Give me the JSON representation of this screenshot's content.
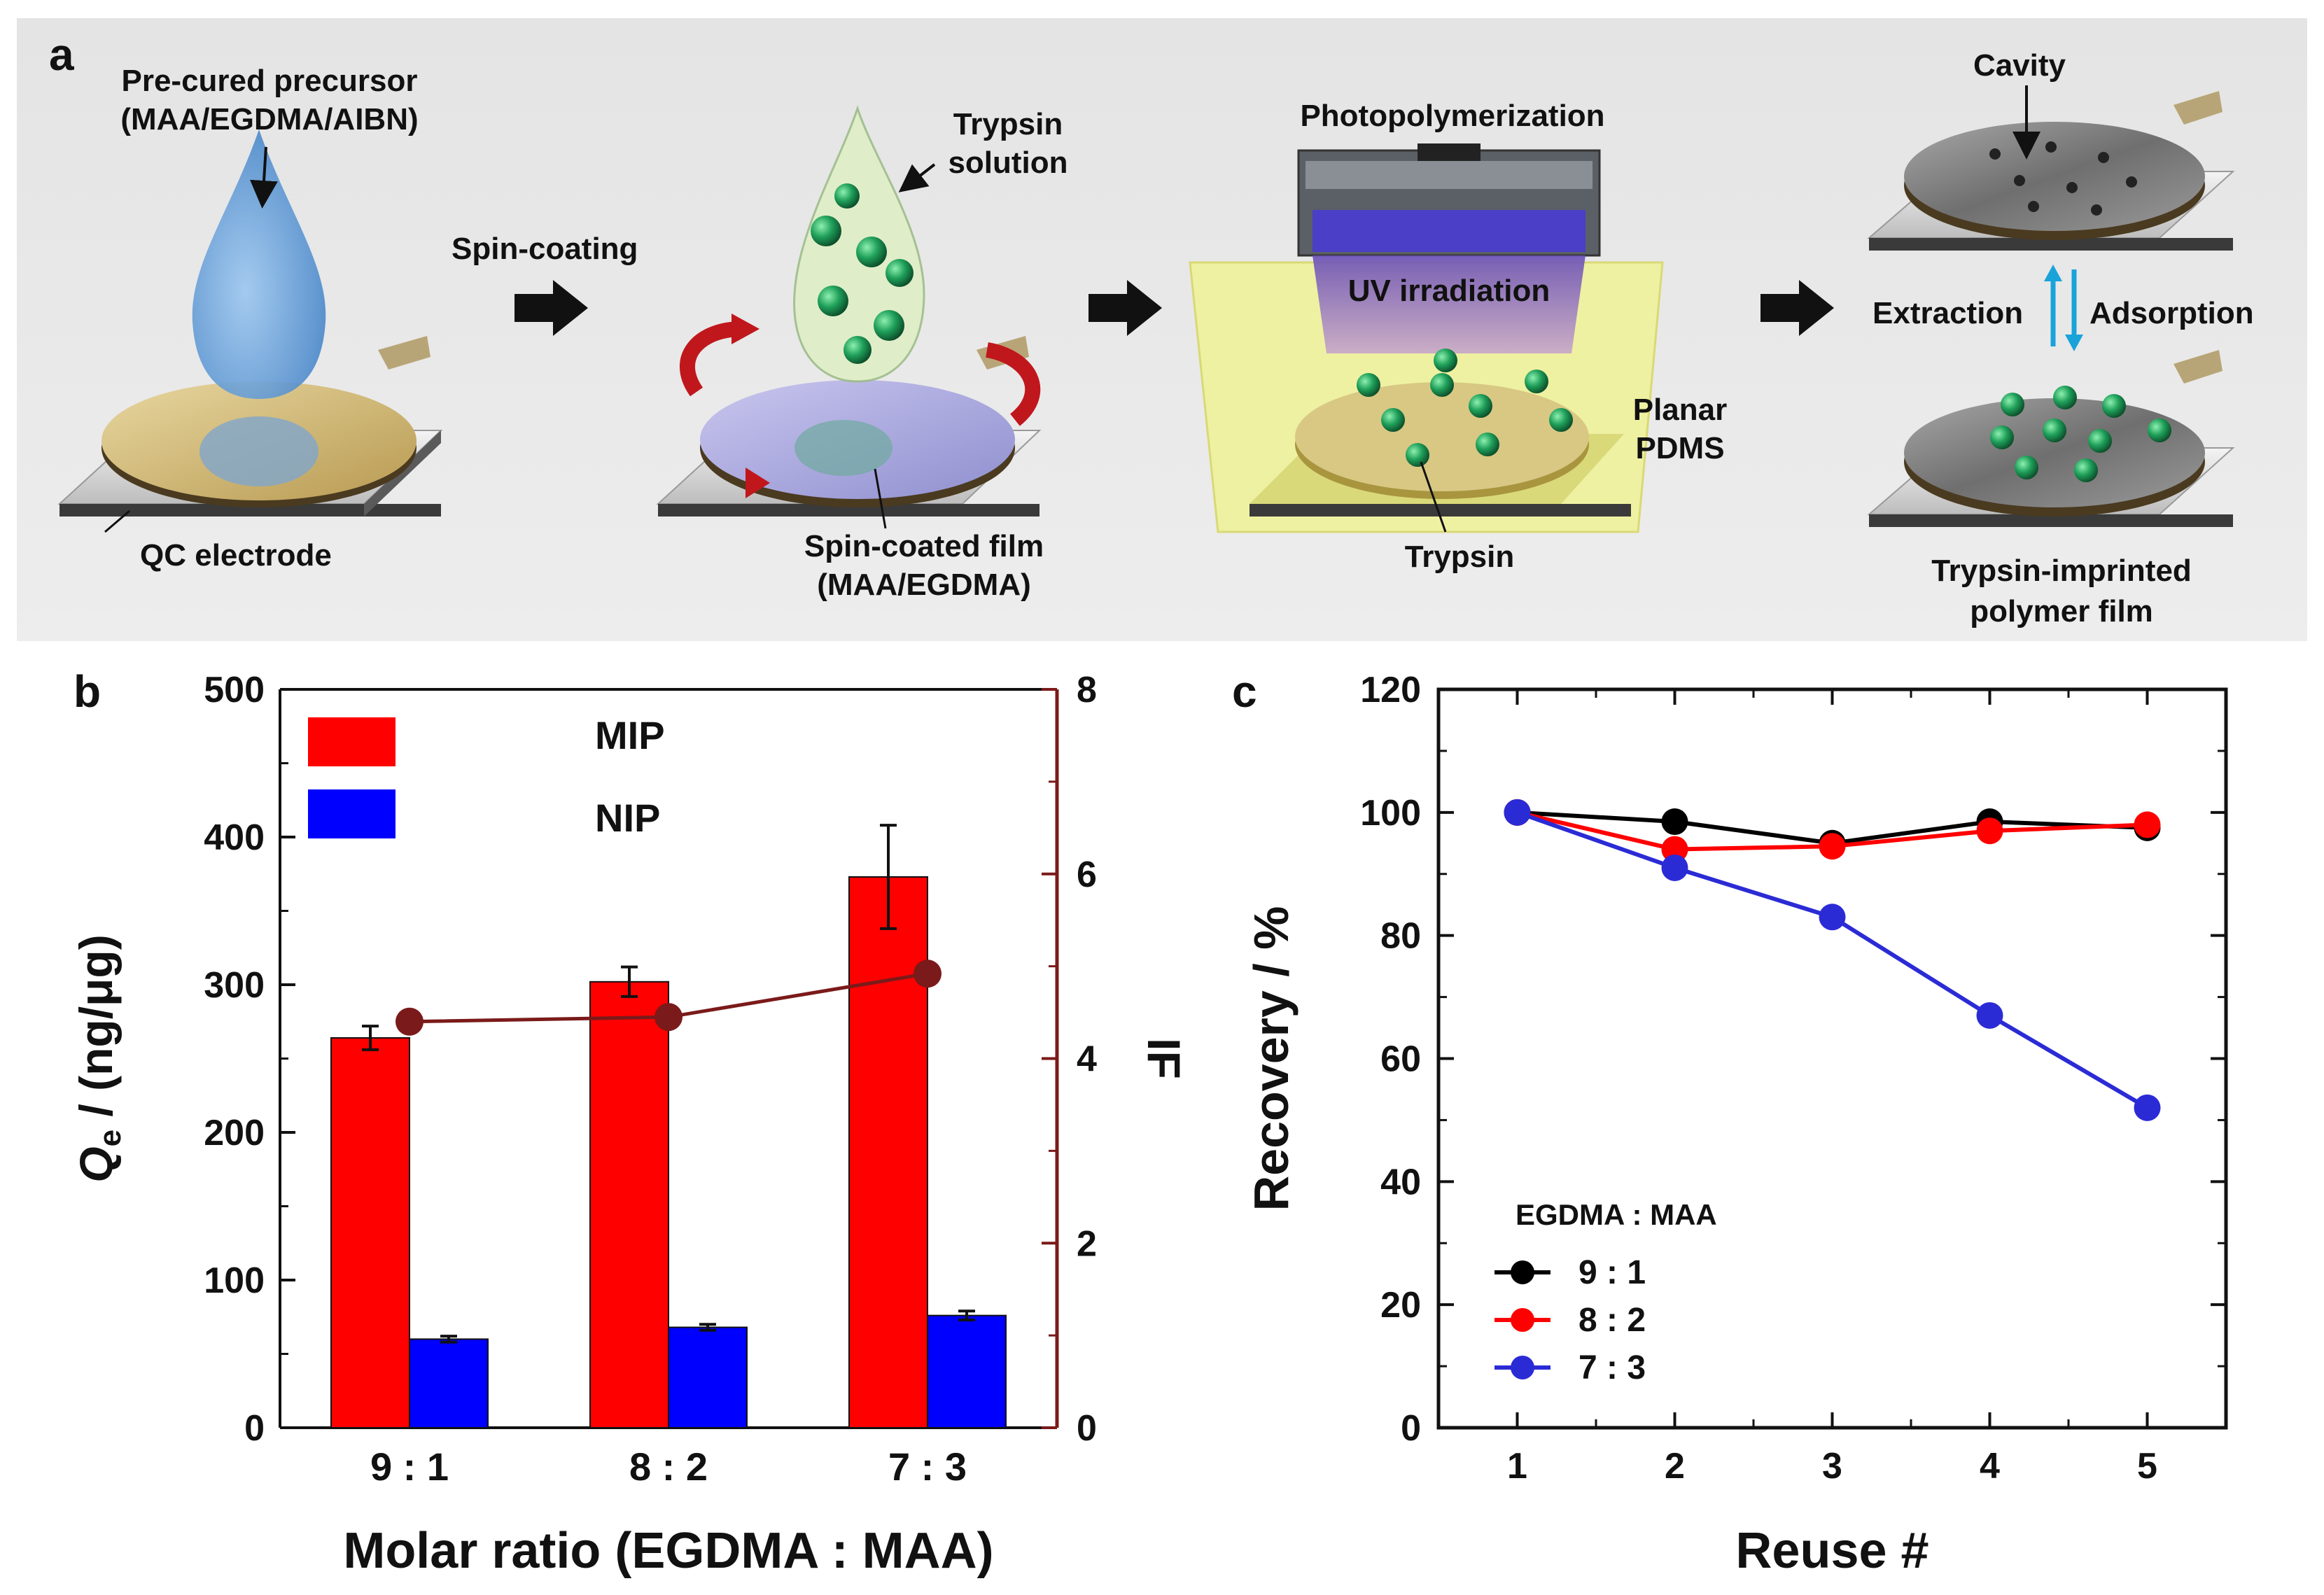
{
  "panel_a": {
    "label": "a",
    "precursor_label_1": "Pre-cured precursor",
    "precursor_label_2": "(MAA/EGDMA/AIBN)",
    "qc_electrode_label": "QC electrode",
    "spin_coating_label": "Spin-coating",
    "trypsin_solution_1": "Trypsin",
    "trypsin_solution_2": "solution",
    "spin_film_1": "Spin-coated film",
    "spin_film_2": "(MAA/EGDMA)",
    "photopolymerization_label": "Photopolymerization",
    "uv_label": "UV irradiation",
    "pdms_1": "Planar",
    "pdms_2": "PDMS",
    "trypsin_label": "Trypsin",
    "cavity_label": "Cavity",
    "extraction_label": "Extraction",
    "adsorption_label": "Adsorption",
    "imprinted_1": "Trypsin-imprinted",
    "imprinted_2": "polymer film",
    "colors": {
      "drop_blue": "#5b9bd5",
      "green": "#1f9a5a",
      "red_arrow": "#c0171d",
      "uv": "#7b5fb0",
      "pdms": "#f2f277",
      "cyan_arrow": "#1aa3d9"
    }
  },
  "panel_b": {
    "label": "b",
    "legend_mip": "MIP",
    "legend_nip": "NIP",
    "colors": {
      "mip": "#ff0000",
      "nip": "#0000ff",
      "if_line": "#7b1a1a"
    }
  },
  "panel_c": {
    "label": "c",
    "legend_title": "EGDMA : MAA",
    "colors": {
      "s91": "#000000",
      "s82": "#ff0000",
      "s73": "#2b2bd6"
    }
  },
  "chart_data": [
    {
      "type": "bar",
      "categories": [
        "9 : 1",
        "8 : 2",
        "7 : 3"
      ],
      "series": [
        {
          "name": "MIP",
          "values": [
            264,
            302,
            373
          ],
          "errors": [
            8,
            10,
            35
          ]
        },
        {
          "name": "NIP",
          "values": [
            60,
            68,
            76
          ],
          "errors": [
            2,
            2,
            3
          ]
        }
      ],
      "secondary_series": {
        "name": "IF",
        "type": "line",
        "values": [
          4.4,
          4.45,
          4.92
        ]
      },
      "title": "",
      "xlabel": "Molar ratio (EGDMA : MAA)",
      "ylabel_main": "Q",
      "ylabel_sub": "e",
      "ylabel_rest": " / (ng/μg)",
      "y2label": "IF",
      "ylim": [
        0,
        500
      ],
      "yticks": [
        "0",
        "100",
        "200",
        "300",
        "400",
        "500"
      ],
      "y2lim": [
        0,
        8
      ],
      "y2ticks": [
        "0",
        "2",
        "4",
        "6",
        "8"
      ]
    },
    {
      "type": "line",
      "x": [
        1,
        2,
        3,
        4,
        5
      ],
      "xticks": [
        "1",
        "2",
        "3",
        "4",
        "5"
      ],
      "series": [
        {
          "name": "9 : 1",
          "values": [
            100,
            98.5,
            95,
            98.5,
            97.5
          ]
        },
        {
          "name": "8 : 2",
          "values": [
            100,
            94,
            94.5,
            97,
            98
          ]
        },
        {
          "name": "7 : 3",
          "values": [
            100,
            91,
            83,
            67,
            52
          ]
        }
      ],
      "title": "",
      "xlabel": "Reuse #",
      "ylabel": "Recovery / %",
      "ylim": [
        0,
        120
      ],
      "yticks": [
        "0",
        "20",
        "40",
        "60",
        "80",
        "100",
        "120"
      ],
      "xlim": [
        0.5,
        5.5
      ]
    }
  ]
}
